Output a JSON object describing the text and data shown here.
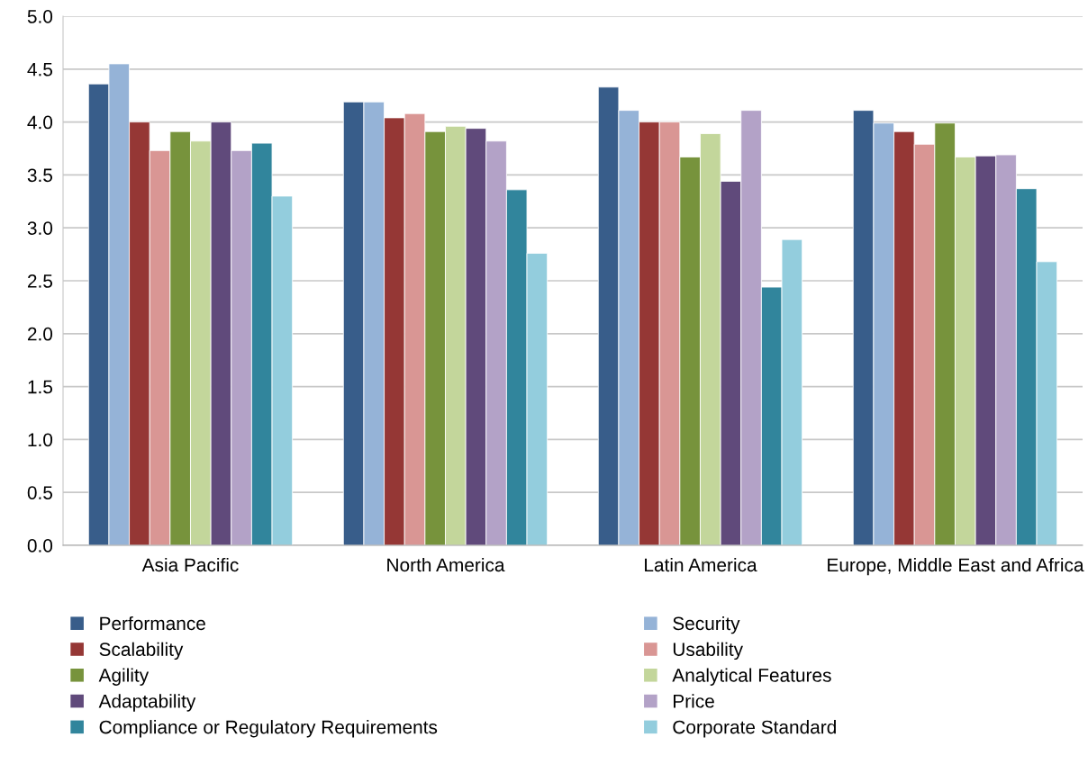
{
  "chart_data": {
    "type": "bar",
    "categories": [
      "Asia Pacific",
      "North America",
      "Latin America",
      "Europe, Middle East and Africa"
    ],
    "series": [
      {
        "name": "Performance",
        "color": "#385d8a",
        "values": [
          4.36,
          4.19,
          4.33,
          4.11
        ]
      },
      {
        "name": "Security",
        "color": "#95b3d7",
        "values": [
          4.55,
          4.19,
          4.11,
          3.99
        ]
      },
      {
        "name": "Scalability",
        "color": "#953735",
        "values": [
          4.0,
          4.04,
          4.0,
          3.91
        ]
      },
      {
        "name": "Usability",
        "color": "#d99694",
        "values": [
          3.73,
          4.08,
          4.0,
          3.79
        ]
      },
      {
        "name": "Agility",
        "color": "#77933c",
        "values": [
          3.91,
          3.91,
          3.67,
          3.99
        ]
      },
      {
        "name": "Analytical Features",
        "color": "#c3d69b",
        "values": [
          3.82,
          3.96,
          3.89,
          3.67
        ]
      },
      {
        "name": "Adaptability",
        "color": "#604a7b",
        "values": [
          4.0,
          3.94,
          3.44,
          3.68
        ]
      },
      {
        "name": "Price",
        "color": "#b3a2c7",
        "values": [
          3.73,
          3.82,
          4.11,
          3.69
        ]
      },
      {
        "name": "Compliance or Regulatory Requirements",
        "color": "#31859c",
        "values": [
          3.8,
          3.36,
          2.44,
          3.37
        ]
      },
      {
        "name": "Corporate Standard",
        "color": "#93cddd",
        "values": [
          3.3,
          2.76,
          2.89,
          2.68
        ]
      }
    ],
    "ylim": [
      0,
      5.0
    ],
    "yticks": [
      {
        "value": 0,
        "label": "0.0"
      },
      {
        "value": 0.5,
        "label": "0.5"
      },
      {
        "value": 1.0,
        "label": "1.0"
      },
      {
        "value": 1.5,
        "label": "1.5"
      },
      {
        "value": 2.0,
        "label": "2.0"
      },
      {
        "value": 2.5,
        "label": "2.5"
      },
      {
        "value": 3.0,
        "label": "3.0"
      },
      {
        "value": 3.5,
        "label": "3.5"
      },
      {
        "value": 4.0,
        "label": "4.0"
      },
      {
        "value": 4.5,
        "label": "4.5"
      },
      {
        "value": 5.0,
        "label": "5.0"
      }
    ],
    "grid": "y",
    "legend": "bottom"
  }
}
